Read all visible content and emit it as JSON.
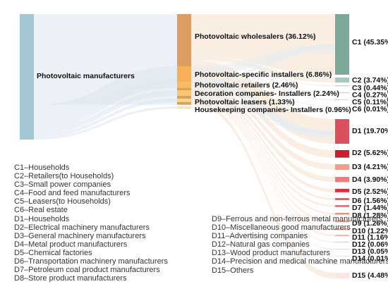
{
  "sankey": {
    "source": {
      "id": "src",
      "label": "Photovoltaic manufacturers",
      "color": "#a3c7d3"
    },
    "intermediates": [
      {
        "id": "i1",
        "label": "Photovoltaic wholesalers (36.12%)",
        "value": 36.12,
        "color": "#dd9d63"
      },
      {
        "id": "i2",
        "label": "Photovoltaic-specific installers (6.86%)",
        "value": 6.86,
        "color": "#f6b057"
      },
      {
        "id": "i3",
        "label": "Photovoltaic retailers (2.46%)",
        "value": 2.46,
        "color": "#f7bd63"
      },
      {
        "id": "i4",
        "label": "Decoration companies- Installers (2.24%)",
        "value": 2.24,
        "color": "#f8c872"
      },
      {
        "id": "i5",
        "label": "Photovoltaic leasers (1.33%)",
        "value": 1.33,
        "color": "#f9d689"
      },
      {
        "id": "i6",
        "label": "Housekeeping companies- Installers (0.96%)",
        "value": 0.96,
        "color": "#fae6a8"
      }
    ],
    "targets_c": [
      {
        "id": "C1",
        "label": "C1 (45.35%)",
        "value": 45.35,
        "color": "#7ba898"
      },
      {
        "id": "C2",
        "label": "C2 (3.74%)",
        "value": 3.74,
        "color": "#a7c9bb"
      },
      {
        "id": "C3",
        "label": "C3 (0.44%)",
        "value": 0.44,
        "color": "#b8d3c7"
      },
      {
        "id": "C4",
        "label": "C4 (0.27%)",
        "value": 0.27,
        "color": "#c2d9cf"
      },
      {
        "id": "C5",
        "label": "C5 (0.11%)",
        "value": 0.11,
        "color": "#cde0d7"
      },
      {
        "id": "C6",
        "label": "C6 (0.01%)",
        "value": 0.01,
        "color": "#d8e7e0"
      }
    ],
    "targets_d": [
      {
        "id": "D1",
        "label": "D1 (19.70%)",
        "value": 19.7,
        "color": "#dc4f5c"
      },
      {
        "id": "D2",
        "label": "D2 (5.62%)",
        "value": 5.62,
        "color": "#c9202f"
      },
      {
        "id": "D3",
        "label": "D3 (4.21%)",
        "value": 4.21,
        "color": "#f69a92"
      },
      {
        "id": "D4",
        "label": "D4 (3.90%)",
        "value": 3.9,
        "color": "#f07b7b"
      },
      {
        "id": "D5",
        "label": "D5 (2.52%)",
        "value": 2.52,
        "color": "#e3283a"
      },
      {
        "id": "D6",
        "label": "D6 (1.56%)",
        "value": 1.56,
        "color": "#ec5a60"
      },
      {
        "id": "D7",
        "label": "D7 (1.44%)",
        "value": 1.44,
        "color": "#f06a6a"
      },
      {
        "id": "D8",
        "label": "D8 (1.28%)",
        "value": 1.28,
        "color": "#f48a86"
      },
      {
        "id": "D9",
        "label": "D9 (1.26%)",
        "value": 1.26,
        "color": "#f59a94"
      },
      {
        "id": "D10",
        "label": "D10 (1.22%)",
        "value": 1.22,
        "color": "#f7aaa3"
      },
      {
        "id": "D11",
        "label": "D11 (1.16%)",
        "value": 1.16,
        "color": "#f8b7b0"
      },
      {
        "id": "D12",
        "label": "D12 (0.06%)",
        "value": 0.06,
        "color": "#f9c5bf"
      },
      {
        "id": "D13",
        "label": "D13 (0.05%)",
        "value": 0.05,
        "color": "#fad2cd"
      },
      {
        "id": "D14",
        "label": "D14 (0.01%)",
        "value": 0.01,
        "color": "#fbdcd8"
      },
      {
        "id": "D15",
        "label": "D15 (4.48%)",
        "value": 4.48,
        "color": "#fce5e2"
      }
    ]
  },
  "legend_left": [
    "C1–Households",
    "C2–Retailers(to Households)",
    "C3–Small power companies",
    "C4–Food and feed manufacturers",
    "C5–Leasers(to Households)",
    "C6–Real estate",
    "D1–Households",
    "D2–Electrical machinery manufacturers",
    "D3–General machinery manufacturers",
    "D4–Metal product manufacturers",
    "D5–Chemical factories",
    "D6–Transportation machinery manufacturers",
    "D7–Petroleum coal product manufacturers",
    "D8–Store product manufacturers"
  ],
  "legend_right": [
    "D9–Ferrous and non-ferrous metal manufacturers",
    "D10–Miscellaneous good manufacturers",
    "D11–Advertising companies",
    "D12–Natural gas companies",
    "D13–Wood product manufacturers",
    "D14–Precision and medical machine manufacturers",
    "D15–Others"
  ]
}
